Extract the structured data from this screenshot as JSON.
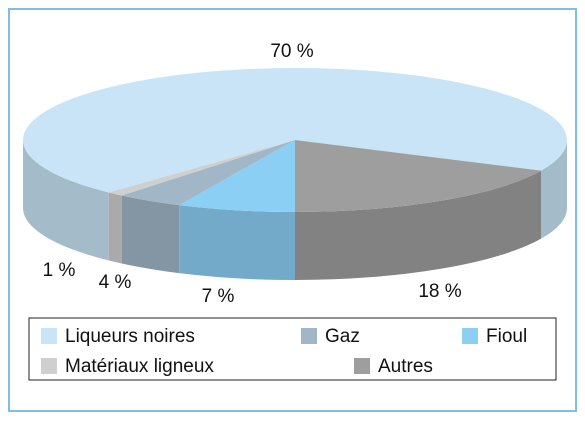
{
  "chart_data": {
    "type": "pie3d",
    "categories": [
      "Liqueurs noires",
      "Autres",
      "Fioul",
      "Gaz",
      "Matériaux ligneux"
    ],
    "values": [
      70,
      18,
      7,
      4,
      1
    ],
    "value_labels": [
      "70 %",
      "18 %",
      "7 %",
      "4 %",
      "1 %"
    ],
    "colors": [
      "#c8e4f6",
      "#9e9e9e",
      "#8ccff5",
      "#a1b7c8",
      "#cfcfcf"
    ]
  }
}
